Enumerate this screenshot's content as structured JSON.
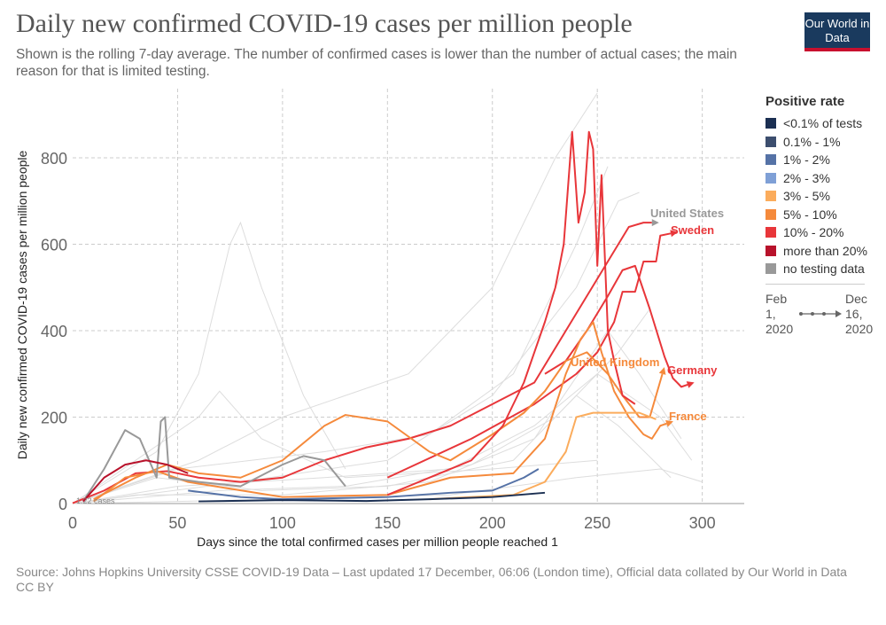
{
  "header": {
    "title": "Daily new confirmed COVID-19 cases per million people",
    "subtitle": "Shown is the rolling 7-day average. The number of confirmed cases is lower than the number of actual cases; the main reason for that is limited testing.",
    "logo": "Our World in Data"
  },
  "legend": {
    "title": "Positive rate",
    "items": [
      {
        "label": "<0.1% of tests",
        "color": "#1b2f52"
      },
      {
        "label": "0.1% - 1%",
        "color": "#3c4e6e"
      },
      {
        "label": "1% - 2%",
        "color": "#5572a6"
      },
      {
        "label": "2% - 3%",
        "color": "#7fa0d6"
      },
      {
        "label": "3% - 5%",
        "color": "#fbac5c"
      },
      {
        "label": "5% - 10%",
        "color": "#f58a3c"
      },
      {
        "label": "10% - 20%",
        "color": "#e8363a"
      },
      {
        "label": "more than 20%",
        "color": "#b8122b"
      },
      {
        "label": "no testing data",
        "color": "#999999"
      }
    ],
    "time_start": "Feb 1, 2020",
    "time_end": "Dec 16, 2020"
  },
  "footer": {
    "source": "Source: Johns Hopkins University CSSE COVID-19 Data – Last updated 17 December, 06:06 (London time), Official data collated by Our World in Data",
    "license": "CC BY"
  },
  "chart_data": {
    "type": "line",
    "xlabel": "Days since the total confirmed cases per million people reached 1",
    "ylabel": "Daily new confirmed COVID-19 cases per million people",
    "xlim": [
      0,
      320
    ],
    "ylim": [
      0,
      960
    ],
    "xticks": [
      0,
      50,
      100,
      150,
      200,
      250,
      300
    ],
    "yticks": [
      0,
      200,
      400,
      600,
      800
    ],
    "grid": true,
    "annotation": "1.22 cases",
    "series": [
      {
        "name": "United States",
        "color": "#e8363a",
        "label_color": "#999999",
        "points": [
          [
            0,
            1
          ],
          [
            15,
            30
          ],
          [
            30,
            70
          ],
          [
            45,
            75
          ],
          [
            60,
            60
          ],
          [
            80,
            50
          ],
          [
            100,
            60
          ],
          [
            120,
            100
          ],
          [
            140,
            130
          ],
          [
            160,
            150
          ],
          [
            180,
            180
          ],
          [
            200,
            230
          ],
          [
            220,
            280
          ],
          [
            235,
            400
          ],
          [
            245,
            480
          ],
          [
            255,
            560
          ],
          [
            265,
            640
          ],
          [
            272,
            650
          ],
          [
            276,
            650
          ]
        ]
      },
      {
        "name": "Sweden",
        "color": "#e8363a",
        "label_color": "#e8363a",
        "points": [
          [
            150,
            60
          ],
          [
            190,
            150
          ],
          [
            220,
            230
          ],
          [
            240,
            300
          ],
          [
            250,
            350
          ],
          [
            258,
            420
          ],
          [
            262,
            490
          ],
          [
            268,
            490
          ],
          [
            272,
            560
          ],
          [
            278,
            560
          ],
          [
            280,
            620
          ],
          [
            285,
            625
          ]
        ]
      },
      {
        "name": "Germany",
        "color": "#e8363a",
        "label_color": "#e8363a",
        "points": [
          [
            225,
            300
          ],
          [
            235,
            330
          ],
          [
            245,
            400
          ],
          [
            255,
            480
          ],
          [
            262,
            540
          ],
          [
            268,
            550
          ],
          [
            275,
            450
          ],
          [
            282,
            340
          ],
          [
            286,
            290
          ],
          [
            290,
            270
          ],
          [
            293,
            275
          ]
        ]
      },
      {
        "name": "United Kingdom",
        "color": "#f58a3c",
        "label_color": "#f58a3c",
        "points": [
          [
            10,
            10
          ],
          [
            30,
            60
          ],
          [
            45,
            90
          ],
          [
            60,
            70
          ],
          [
            80,
            60
          ],
          [
            100,
            100
          ],
          [
            120,
            180
          ],
          [
            130,
            205
          ],
          [
            150,
            190
          ],
          [
            170,
            120
          ],
          [
            180,
            100
          ],
          [
            200,
            160
          ],
          [
            215,
            210
          ],
          [
            225,
            260
          ],
          [
            235,
            330
          ],
          [
            245,
            350
          ],
          [
            255,
            300
          ],
          [
            262,
            250
          ],
          [
            270,
            200
          ],
          [
            275,
            200
          ],
          [
            281,
            300
          ]
        ]
      },
      {
        "name": "France",
        "color": "#f58a3c",
        "label_color": "#f58a3c",
        "points": [
          [
            10,
            5
          ],
          [
            25,
            60
          ],
          [
            40,
            75
          ],
          [
            55,
            50
          ],
          [
            100,
            15
          ],
          [
            150,
            20
          ],
          [
            180,
            60
          ],
          [
            210,
            70
          ],
          [
            225,
            150
          ],
          [
            235,
            300
          ],
          [
            242,
            380
          ],
          [
            248,
            420
          ],
          [
            252,
            350
          ],
          [
            258,
            260
          ],
          [
            265,
            200
          ],
          [
            272,
            160
          ],
          [
            276,
            150
          ],
          [
            280,
            180
          ],
          [
            283,
            185
          ]
        ]
      },
      {
        "color": "#e8363a",
        "points": [
          [
            150,
            20
          ],
          [
            190,
            100
          ],
          [
            205,
            180
          ],
          [
            215,
            280
          ],
          [
            225,
            420
          ],
          [
            230,
            500
          ],
          [
            234,
            600
          ],
          [
            238,
            860
          ],
          [
            241,
            650
          ],
          [
            244,
            720
          ],
          [
            246,
            860
          ],
          [
            248,
            820
          ],
          [
            250,
            550
          ],
          [
            252,
            760
          ],
          [
            255,
            400
          ],
          [
            258,
            330
          ],
          [
            262,
            250
          ],
          [
            268,
            230
          ]
        ]
      },
      {
        "color": "#fbac5c",
        "points": [
          [
            170,
            10
          ],
          [
            210,
            20
          ],
          [
            225,
            50
          ],
          [
            235,
            120
          ],
          [
            240,
            200
          ],
          [
            248,
            210
          ],
          [
            260,
            210
          ],
          [
            270,
            210
          ],
          [
            278,
            195
          ]
        ]
      },
      {
        "color": "#5572a6",
        "points": [
          [
            55,
            30
          ],
          [
            80,
            15
          ],
          [
            100,
            10
          ],
          [
            150,
            15
          ],
          [
            180,
            25
          ],
          [
            200,
            30
          ],
          [
            215,
            60
          ],
          [
            222,
            80
          ]
        ]
      },
      {
        "color": "#1b2f52",
        "points": [
          [
            60,
            5
          ],
          [
            100,
            8
          ],
          [
            140,
            6
          ],
          [
            170,
            10
          ],
          [
            200,
            15
          ],
          [
            225,
            25
          ]
        ]
      },
      {
        "color": "#999999",
        "points": [
          [
            5,
            5
          ],
          [
            15,
            80
          ],
          [
            25,
            170
          ],
          [
            32,
            150
          ],
          [
            40,
            60
          ],
          [
            42,
            190
          ],
          [
            44,
            200
          ],
          [
            46,
            60
          ],
          [
            60,
            50
          ],
          [
            80,
            40
          ],
          [
            100,
            90
          ],
          [
            110,
            110
          ],
          [
            120,
            100
          ],
          [
            130,
            40
          ]
        ]
      },
      {
        "color": "#b8122b",
        "points": [
          [
            5,
            5
          ],
          [
            15,
            60
          ],
          [
            25,
            90
          ],
          [
            35,
            100
          ],
          [
            45,
            90
          ],
          [
            55,
            70
          ]
        ]
      }
    ],
    "background_series": [
      [
        [
          0,
          0
        ],
        [
          40,
          120
        ],
        [
          60,
          300
        ],
        [
          75,
          600
        ],
        [
          80,
          650
        ],
        [
          90,
          500
        ],
        [
          110,
          250
        ],
        [
          130,
          80
        ]
      ],
      [
        [
          0,
          0
        ],
        [
          60,
          100
        ],
        [
          100,
          200
        ],
        [
          160,
          300
        ],
        [
          200,
          500
        ],
        [
          230,
          800
        ],
        [
          250,
          950
        ]
      ],
      [
        [
          0,
          0
        ],
        [
          80,
          50
        ],
        [
          150,
          100
        ],
        [
          200,
          250
        ],
        [
          240,
          500
        ],
        [
          260,
          700
        ],
        [
          270,
          720
        ]
      ],
      [
        [
          0,
          0
        ],
        [
          50,
          40
        ],
        [
          120,
          60
        ],
        [
          180,
          80
        ],
        [
          220,
          180
        ],
        [
          250,
          300
        ],
        [
          280,
          200
        ],
        [
          295,
          100
        ]
      ],
      [
        [
          0,
          0
        ],
        [
          40,
          60
        ],
        [
          90,
          30
        ],
        [
          150,
          40
        ],
        [
          210,
          100
        ],
        [
          240,
          250
        ],
        [
          260,
          180
        ],
        [
          285,
          60
        ]
      ],
      [
        [
          0,
          0
        ],
        [
          30,
          20
        ],
        [
          100,
          20
        ],
        [
          170,
          50
        ],
        [
          220,
          150
        ],
        [
          255,
          400
        ],
        [
          270,
          300
        ],
        [
          290,
          150
        ]
      ],
      [
        [
          0,
          0
        ],
        [
          70,
          30
        ],
        [
          130,
          40
        ],
        [
          190,
          90
        ],
        [
          230,
          200
        ],
        [
          260,
          350
        ],
        [
          275,
          450
        ]
      ],
      [
        [
          0,
          0
        ],
        [
          60,
          200
        ],
        [
          70,
          260
        ],
        [
          90,
          150
        ],
        [
          130,
          60
        ],
        [
          200,
          80
        ],
        [
          250,
          100
        ]
      ],
      [
        [
          0,
          0
        ],
        [
          100,
          10
        ],
        [
          180,
          20
        ],
        [
          240,
          60
        ],
        [
          280,
          80
        ],
        [
          300,
          50
        ]
      ],
      [
        [
          0,
          0
        ],
        [
          50,
          80
        ],
        [
          120,
          120
        ],
        [
          170,
          160
        ],
        [
          210,
          300
        ],
        [
          240,
          600
        ],
        [
          255,
          780
        ]
      ]
    ]
  }
}
